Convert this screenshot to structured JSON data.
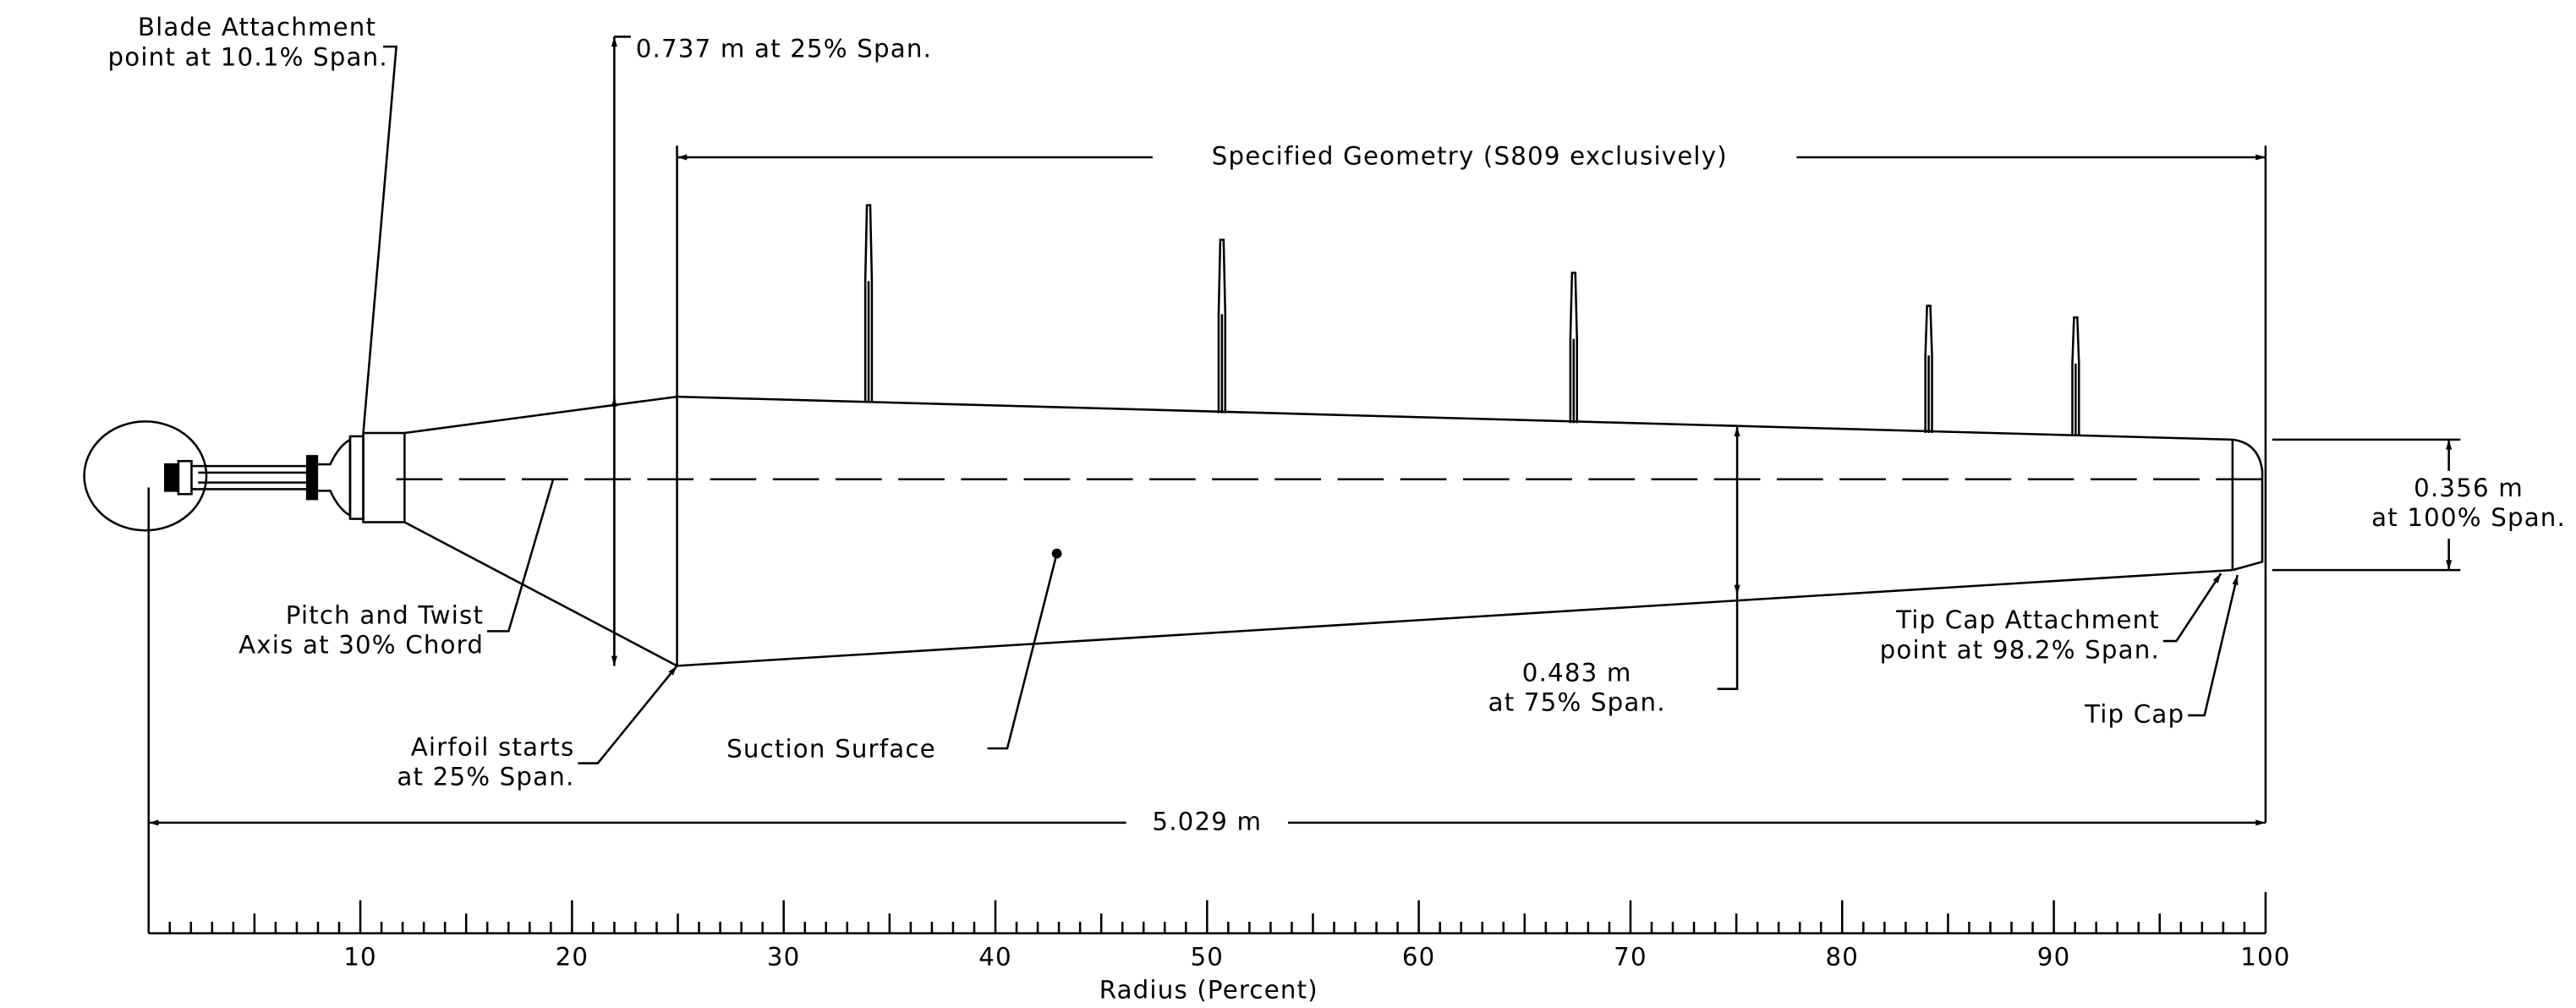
{
  "annotations": [
    {
      "lines": [
        "Blade Attachment",
        "point at 10.1% Span."
      ]
    },
    {
      "lines": [
        "0.737 m at 25% Span."
      ]
    },
    {
      "lines": [
        "Specified Geometry (S809 exclusively)"
      ]
    },
    {
      "lines": [
        "0.356 m",
        "at 100% Span."
      ]
    },
    {
      "lines": [
        "Pitch and Twist",
        "Axis at 30% Chord"
      ]
    },
    {
      "lines": [
        "Airfoil starts",
        "at 25% Span."
      ]
    },
    {
      "lines": [
        "Suction Surface"
      ]
    },
    {
      "lines": [
        "0.483 m",
        "at 75% Span."
      ]
    },
    {
      "lines": [
        "Tip Cap Attachment",
        "point at 98.2% Span."
      ]
    },
    {
      "lines": [
        "Tip Cap"
      ]
    },
    {
      "lines": [
        "5.029 m"
      ]
    }
  ],
  "axis": {
    "ticks": [
      10,
      20,
      30,
      40,
      50,
      60,
      70,
      80,
      90,
      100
    ],
    "label": "Radius (Percent)"
  }
}
